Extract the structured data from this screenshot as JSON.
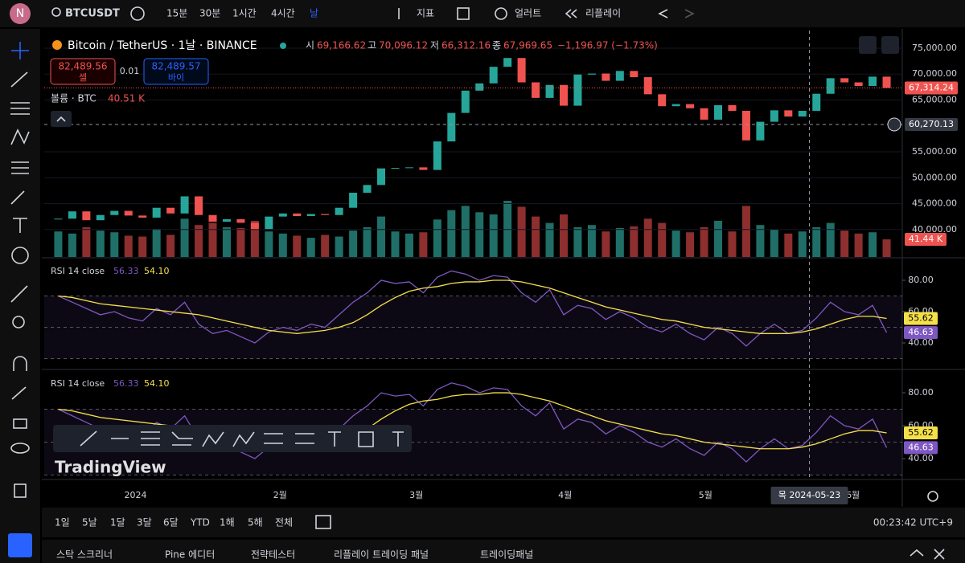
{
  "header": {
    "avatar": "N",
    "symbol": "BTCUSDT",
    "intervals": [
      "15분",
      "30분",
      "1시간",
      "4시간",
      "날"
    ],
    "indicators": "지표",
    "alert": "얼러트",
    "replay": "리플레이"
  },
  "legend": {
    "title": "Bitcoin / TetherUS · 1날 · BINANCE",
    "open_label": "시",
    "open": "69,166.62",
    "high_label": "고",
    "high": "70,096.12",
    "low_label": "저",
    "low": "66,312.16",
    "close_label": "종",
    "close": "67,969.65",
    "change": "−1,196.97 (−1.73%)"
  },
  "trade": {
    "sell_price": "82,489.56",
    "sell": "셀",
    "qty": "0.01",
    "buy_price": "82,489.57",
    "buy": "바이"
  },
  "volume_legend": {
    "title": "볼륨 · BTC",
    "value": "40.51 K"
  },
  "watermark": "TradingView",
  "ranges": [
    "1일",
    "5날",
    "1달",
    "3달",
    "6달",
    "YTD",
    "1해",
    "5해",
    "전체"
  ],
  "clock": "00:23:42 UTC+9",
  "tabs": [
    "스탁 스크리너",
    "Pine 에디터",
    "전략테스터",
    "리플레이 트레이딩 패널",
    "트레이딩패널"
  ],
  "chart_data": [
    {
      "type": "candlestick",
      "x": [
        1,
        2,
        3,
        4,
        5,
        6,
        7,
        8,
        9,
        10,
        11,
        12,
        13,
        14,
        15,
        16,
        17,
        18,
        19,
        20,
        21,
        22,
        23,
        24,
        25,
        26,
        27,
        28,
        29,
        30,
        31,
        32,
        33,
        34,
        35,
        36,
        37,
        38,
        39,
        40,
        41,
        42,
        43,
        44,
        45,
        46,
        47,
        48,
        49,
        50,
        51,
        52,
        53,
        54,
        55,
        56,
        57,
        58,
        59,
        60
      ],
      "values": [
        42100,
        43500,
        41800,
        42800,
        43600,
        42700,
        42300,
        44200,
        43100,
        46400,
        42800,
        41500,
        42000,
        41300,
        40100,
        42500,
        43100,
        42600,
        43000,
        42800,
        44200,
        47100,
        48600,
        51800,
        51900,
        52000,
        51500,
        57000,
        62500,
        66800,
        68200,
        71400,
        73100,
        68400,
        65400,
        67900,
        63900,
        69900,
        70100,
        68700,
        70600,
        69400,
        66100,
        63800,
        64200,
        63400,
        61200,
        64000,
        62900,
        57200,
        60800,
        63000,
        61800,
        62900,
        66200,
        69200,
        68400,
        67700,
        69500,
        67314
      ],
      "color_up": "#26a69a",
      "color_down": "#ef5350",
      "xlim": [
        0,
        61
      ],
      "xticks": [
        {
          "value": 6.5,
          "label": "2024"
        },
        {
          "value": 16.8,
          "label": "2월"
        },
        {
          "value": 26.5,
          "label": "3월"
        },
        {
          "value": 37.1,
          "label": "4월"
        },
        {
          "value": 47.1,
          "label": "5월"
        },
        {
          "value": 57.6,
          "label": "6월"
        }
      ],
      "ylim": [
        34700,
        78400
      ],
      "yticks": [
        {
          "value": 75000,
          "label": "75,000.00"
        },
        {
          "value": 70000,
          "label": "70,000.00"
        },
        {
          "value": 65000,
          "label": "65,000.00"
        },
        {
          "value": 55000,
          "label": "55,000.00"
        },
        {
          "value": 50000,
          "label": "50,000.00"
        },
        {
          "value": 45000,
          "label": "45,000.00"
        },
        {
          "value": 40000,
          "label": "40,000.00"
        }
      ],
      "last": {
        "value": 67314.24,
        "label": "67,314.24"
      },
      "crosshair": {
        "x": 54.5,
        "price": 60270.13,
        "price_label": "60,270.13",
        "date_label": "목 2024-05-23"
      }
    },
    {
      "type": "bar",
      "ylim": [
        0,
        132
      ],
      "values": [
        60,
        55,
        70,
        62,
        58,
        50,
        48,
        66,
        52,
        90,
        75,
        80,
        70,
        68,
        85,
        60,
        55,
        50,
        45,
        52,
        48,
        62,
        70,
        95,
        60,
        55,
        58,
        88,
        110,
        120,
        105,
        100,
        132,
        118,
        95,
        80,
        100,
        70,
        75,
        60,
        68,
        72,
        90,
        80,
        62,
        58,
        70,
        85,
        60,
        120,
        75,
        65,
        55,
        60,
        70,
        80,
        62,
        55,
        58,
        41.44
      ],
      "last": {
        "value": 41.44,
        "label": "41.44 K"
      }
    },
    {
      "type": "line",
      "title": "RSI 14 close",
      "legend_values": [
        "56.33",
        "54.10"
      ],
      "series": [
        {
          "color": "#7e57c2",
          "values": [
            70,
            66,
            62,
            58,
            60,
            56,
            54,
            62,
            58,
            66,
            52,
            46,
            48,
            44,
            40,
            47,
            50,
            48,
            52,
            50,
            58,
            66,
            72,
            80,
            78,
            79,
            72,
            82,
            86,
            84,
            80,
            83,
            82,
            72,
            66,
            74,
            58,
            64,
            62,
            55,
            60,
            56,
            50,
            47,
            52,
            46,
            42,
            50,
            46,
            38,
            46,
            52,
            46,
            48,
            56,
            66,
            60,
            58,
            64,
            46.63
          ]
        },
        {
          "color": "#f5e04a",
          "values": [
            70,
            69,
            67,
            65,
            64,
            63,
            62,
            61,
            60,
            59,
            58,
            56,
            54,
            52,
            50,
            48,
            47,
            46,
            47,
            48,
            50,
            53,
            58,
            64,
            69,
            73,
            75,
            76,
            78,
            79,
            79,
            80,
            80,
            79,
            77,
            75,
            72,
            69,
            66,
            63,
            61,
            59,
            57,
            55,
            54,
            52,
            50,
            49,
            48,
            47,
            46,
            46,
            46,
            47,
            49,
            52,
            55,
            57,
            57,
            55.62
          ]
        }
      ],
      "ylim": [
        24.1,
        93.85
      ],
      "yticks": [
        {
          "value": 80,
          "label": "80.00"
        },
        {
          "value": 60,
          "label": "60.00"
        },
        {
          "value": 40,
          "label": "40.00"
        }
      ],
      "levels": [
        70,
        50,
        30
      ],
      "last": [
        {
          "value": 55.62,
          "label": "55.62",
          "color": "#f5e04a"
        },
        {
          "value": 46.63,
          "label": "46.63",
          "color": "#7e57c2"
        }
      ]
    },
    {
      "type": "line",
      "title": "RSI 14 close",
      "legend_values": [
        "56.33",
        "54.10"
      ],
      "series": [
        {
          "color": "#7e57c2",
          "values": [
            70,
            66,
            62,
            58,
            60,
            56,
            54,
            62,
            58,
            66,
            52,
            46,
            48,
            44,
            40,
            47,
            50,
            48,
            52,
            50,
            58,
            66,
            72,
            80,
            78,
            79,
            72,
            82,
            86,
            84,
            80,
            83,
            82,
            72,
            66,
            74,
            58,
            64,
            62,
            55,
            60,
            56,
            50,
            47,
            52,
            46,
            42,
            50,
            46,
            38,
            46,
            52,
            46,
            48,
            56,
            66,
            60,
            58,
            64,
            46.63
          ]
        },
        {
          "color": "#f5e04a",
          "values": [
            70,
            69,
            67,
            65,
            64,
            63,
            62,
            61,
            60,
            59,
            58,
            56,
            54,
            52,
            50,
            48,
            47,
            46,
            47,
            48,
            50,
            53,
            58,
            64,
            69,
            73,
            75,
            76,
            78,
            79,
            79,
            80,
            80,
            79,
            77,
            75,
            72,
            69,
            66,
            63,
            61,
            59,
            57,
            55,
            54,
            52,
            50,
            49,
            48,
            47,
            46,
            46,
            46,
            47,
            49,
            52,
            55,
            57,
            57,
            55.62
          ]
        }
      ],
      "ylim": [
        28.3,
        93.2
      ],
      "yticks": [
        {
          "value": 80,
          "label": "80.00"
        },
        {
          "value": 60,
          "label": "60.00"
        },
        {
          "value": 40,
          "label": "40.00"
        }
      ],
      "levels": [
        70,
        50,
        30
      ],
      "last": [
        {
          "value": 55.62,
          "label": "55.62",
          "color": "#f5e04a"
        },
        {
          "value": 46.63,
          "label": "46.63",
          "color": "#7e57c2"
        }
      ]
    }
  ]
}
